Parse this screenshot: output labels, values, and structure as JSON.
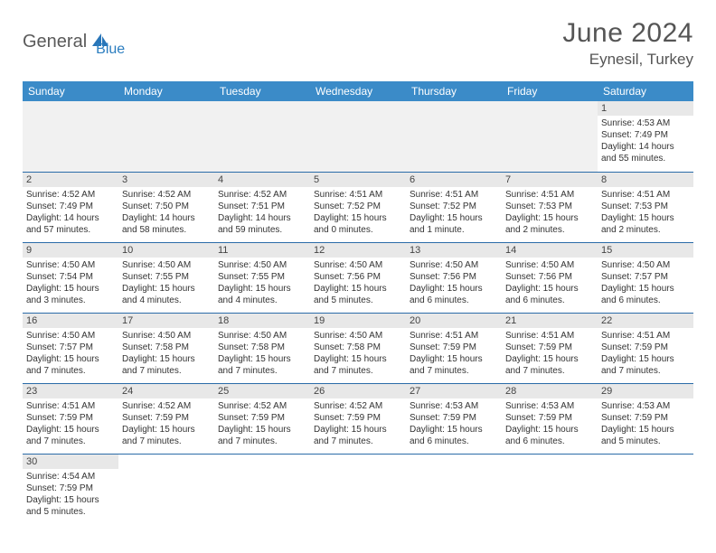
{
  "logo": {
    "part1": "General",
    "part2": "Blue"
  },
  "title": "June 2024",
  "location": "Eynesil, Turkey",
  "colors": {
    "header_bg": "#3b8bc8",
    "header_text": "#ffffff",
    "daynum_bg": "#e8e8e8",
    "cell_border": "#2b6ca8",
    "logo_gray": "#5a5a5a",
    "logo_blue": "#2b7dbf"
  },
  "weekdays": [
    "Sunday",
    "Monday",
    "Tuesday",
    "Wednesday",
    "Thursday",
    "Friday",
    "Saturday"
  ],
  "leading_blanks": 6,
  "days": [
    {
      "n": "1",
      "sunrise": "Sunrise: 4:53 AM",
      "sunset": "Sunset: 7:49 PM",
      "daylight": "Daylight: 14 hours and 55 minutes."
    },
    {
      "n": "2",
      "sunrise": "Sunrise: 4:52 AM",
      "sunset": "Sunset: 7:49 PM",
      "daylight": "Daylight: 14 hours and 57 minutes."
    },
    {
      "n": "3",
      "sunrise": "Sunrise: 4:52 AM",
      "sunset": "Sunset: 7:50 PM",
      "daylight": "Daylight: 14 hours and 58 minutes."
    },
    {
      "n": "4",
      "sunrise": "Sunrise: 4:52 AM",
      "sunset": "Sunset: 7:51 PM",
      "daylight": "Daylight: 14 hours and 59 minutes."
    },
    {
      "n": "5",
      "sunrise": "Sunrise: 4:51 AM",
      "sunset": "Sunset: 7:52 PM",
      "daylight": "Daylight: 15 hours and 0 minutes."
    },
    {
      "n": "6",
      "sunrise": "Sunrise: 4:51 AM",
      "sunset": "Sunset: 7:52 PM",
      "daylight": "Daylight: 15 hours and 1 minute."
    },
    {
      "n": "7",
      "sunrise": "Sunrise: 4:51 AM",
      "sunset": "Sunset: 7:53 PM",
      "daylight": "Daylight: 15 hours and 2 minutes."
    },
    {
      "n": "8",
      "sunrise": "Sunrise: 4:51 AM",
      "sunset": "Sunset: 7:53 PM",
      "daylight": "Daylight: 15 hours and 2 minutes."
    },
    {
      "n": "9",
      "sunrise": "Sunrise: 4:50 AM",
      "sunset": "Sunset: 7:54 PM",
      "daylight": "Daylight: 15 hours and 3 minutes."
    },
    {
      "n": "10",
      "sunrise": "Sunrise: 4:50 AM",
      "sunset": "Sunset: 7:55 PM",
      "daylight": "Daylight: 15 hours and 4 minutes."
    },
    {
      "n": "11",
      "sunrise": "Sunrise: 4:50 AM",
      "sunset": "Sunset: 7:55 PM",
      "daylight": "Daylight: 15 hours and 4 minutes."
    },
    {
      "n": "12",
      "sunrise": "Sunrise: 4:50 AM",
      "sunset": "Sunset: 7:56 PM",
      "daylight": "Daylight: 15 hours and 5 minutes."
    },
    {
      "n": "13",
      "sunrise": "Sunrise: 4:50 AM",
      "sunset": "Sunset: 7:56 PM",
      "daylight": "Daylight: 15 hours and 6 minutes."
    },
    {
      "n": "14",
      "sunrise": "Sunrise: 4:50 AM",
      "sunset": "Sunset: 7:56 PM",
      "daylight": "Daylight: 15 hours and 6 minutes."
    },
    {
      "n": "15",
      "sunrise": "Sunrise: 4:50 AM",
      "sunset": "Sunset: 7:57 PM",
      "daylight": "Daylight: 15 hours and 6 minutes."
    },
    {
      "n": "16",
      "sunrise": "Sunrise: 4:50 AM",
      "sunset": "Sunset: 7:57 PM",
      "daylight": "Daylight: 15 hours and 7 minutes."
    },
    {
      "n": "17",
      "sunrise": "Sunrise: 4:50 AM",
      "sunset": "Sunset: 7:58 PM",
      "daylight": "Daylight: 15 hours and 7 minutes."
    },
    {
      "n": "18",
      "sunrise": "Sunrise: 4:50 AM",
      "sunset": "Sunset: 7:58 PM",
      "daylight": "Daylight: 15 hours and 7 minutes."
    },
    {
      "n": "19",
      "sunrise": "Sunrise: 4:50 AM",
      "sunset": "Sunset: 7:58 PM",
      "daylight": "Daylight: 15 hours and 7 minutes."
    },
    {
      "n": "20",
      "sunrise": "Sunrise: 4:51 AM",
      "sunset": "Sunset: 7:59 PM",
      "daylight": "Daylight: 15 hours and 7 minutes."
    },
    {
      "n": "21",
      "sunrise": "Sunrise: 4:51 AM",
      "sunset": "Sunset: 7:59 PM",
      "daylight": "Daylight: 15 hours and 7 minutes."
    },
    {
      "n": "22",
      "sunrise": "Sunrise: 4:51 AM",
      "sunset": "Sunset: 7:59 PM",
      "daylight": "Daylight: 15 hours and 7 minutes."
    },
    {
      "n": "23",
      "sunrise": "Sunrise: 4:51 AM",
      "sunset": "Sunset: 7:59 PM",
      "daylight": "Daylight: 15 hours and 7 minutes."
    },
    {
      "n": "24",
      "sunrise": "Sunrise: 4:52 AM",
      "sunset": "Sunset: 7:59 PM",
      "daylight": "Daylight: 15 hours and 7 minutes."
    },
    {
      "n": "25",
      "sunrise": "Sunrise: 4:52 AM",
      "sunset": "Sunset: 7:59 PM",
      "daylight": "Daylight: 15 hours and 7 minutes."
    },
    {
      "n": "26",
      "sunrise": "Sunrise: 4:52 AM",
      "sunset": "Sunset: 7:59 PM",
      "daylight": "Daylight: 15 hours and 7 minutes."
    },
    {
      "n": "27",
      "sunrise": "Sunrise: 4:53 AM",
      "sunset": "Sunset: 7:59 PM",
      "daylight": "Daylight: 15 hours and 6 minutes."
    },
    {
      "n": "28",
      "sunrise": "Sunrise: 4:53 AM",
      "sunset": "Sunset: 7:59 PM",
      "daylight": "Daylight: 15 hours and 6 minutes."
    },
    {
      "n": "29",
      "sunrise": "Sunrise: 4:53 AM",
      "sunset": "Sunset: 7:59 PM",
      "daylight": "Daylight: 15 hours and 5 minutes."
    },
    {
      "n": "30",
      "sunrise": "Sunrise: 4:54 AM",
      "sunset": "Sunset: 7:59 PM",
      "daylight": "Daylight: 15 hours and 5 minutes."
    }
  ]
}
